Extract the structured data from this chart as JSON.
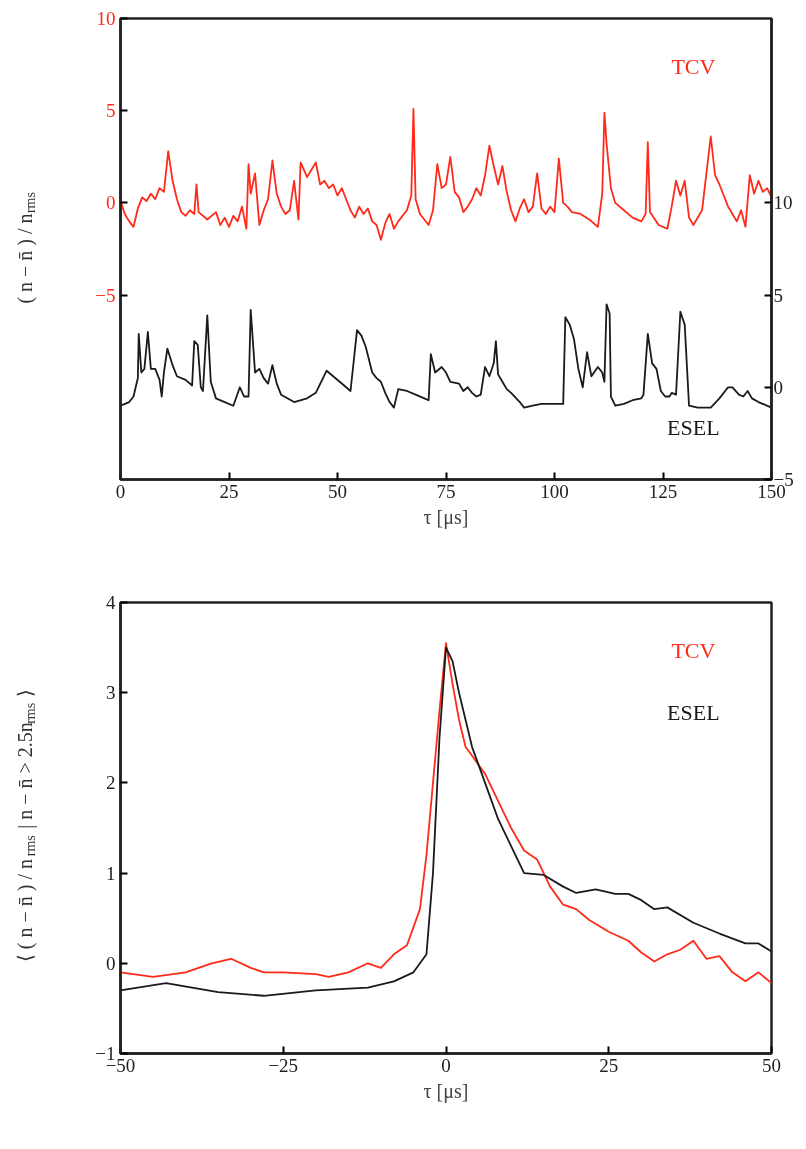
{
  "chart_data": [
    {
      "type": "line",
      "xlabel": "τ [μs]",
      "ylabel": "( n − n̄ ) / n$_{rms}$",
      "xlim": [
        0,
        150
      ],
      "xticks": [
        0,
        25,
        50,
        75,
        100,
        125,
        150
      ],
      "ylim": [
        -15,
        10
      ],
      "yticks": [
        -5,
        0,
        5,
        10
      ],
      "y2lim": [
        -5,
        20
      ],
      "y2ticks": [
        -5,
        0,
        5,
        10
      ],
      "grid": false,
      "series": [
        {
          "name": "TCV",
          "color": "#ff2a1a",
          "x": [
            0,
            1,
            2,
            3,
            4,
            5,
            6,
            7,
            8,
            9,
            10,
            11,
            12,
            13,
            14,
            15,
            16,
            17,
            17.5,
            18,
            20,
            22,
            23,
            24,
            25,
            26,
            27,
            28,
            29,
            29.5,
            30,
            31,
            32,
            33,
            34,
            35,
            36,
            37,
            38,
            39,
            40,
            41,
            41.5,
            43,
            44,
            45,
            46,
            47,
            48,
            49,
            50,
            51,
            52,
            53,
            54,
            55,
            56,
            57,
            58,
            59,
            60,
            61,
            62,
            63,
            64,
            66,
            67,
            67.5,
            68,
            69,
            70,
            71,
            72,
            73,
            74,
            75,
            76,
            77,
            78,
            79,
            80,
            81,
            82,
            83,
            84,
            85,
            86,
            87,
            88,
            89,
            90,
            91,
            92,
            93,
            94,
            95,
            96,
            97,
            98,
            99,
            100,
            101,
            102,
            103,
            104,
            106,
            108,
            110,
            111,
            111.5,
            112,
            113,
            114,
            116,
            118,
            120,
            121,
            121.5,
            122,
            124,
            126,
            127,
            128,
            129,
            130,
            131,
            132,
            134,
            136,
            137,
            138,
            139,
            140,
            141,
            142,
            143,
            144,
            145,
            146,
            147,
            148,
            149,
            150
          ],
          "values": [
            0.1,
            -0.6,
            -1.0,
            -1.3,
            -0.3,
            0.3,
            0.1,
            0.5,
            0.2,
            0.8,
            0.6,
            2.8,
            1.2,
            0.2,
            -0.5,
            -0.7,
            -0.4,
            -0.6,
            1.0,
            -0.5,
            -0.9,
            -0.5,
            -1.2,
            -0.8,
            -1.3,
            -0.7,
            -1.0,
            -0.2,
            -1.4,
            2.1,
            0.5,
            1.6,
            -1.2,
            -0.4,
            0.2,
            2.3,
            0.5,
            -0.2,
            -0.6,
            -0.4,
            1.2,
            -0.9,
            2.2,
            1.4,
            1.8,
            2.2,
            1.0,
            1.2,
            0.8,
            1.0,
            0.4,
            0.8,
            0.2,
            -0.4,
            -0.8,
            -0.2,
            -0.6,
            -0.3,
            -1.0,
            -1.2,
            -2.0,
            -1.1,
            -0.6,
            -1.4,
            -1.0,
            -0.4,
            0.4,
            5.1,
            0.2,
            -0.6,
            -0.9,
            -1.2,
            -0.4,
            2.1,
            0.8,
            1.0,
            2.5,
            0.6,
            0.3,
            -0.5,
            -0.2,
            0.2,
            0.8,
            0.4,
            1.5,
            3.1,
            2.0,
            1.0,
            2.0,
            0.6,
            -0.4,
            -1.0,
            -0.3,
            0.2,
            -0.5,
            -0.2,
            1.6,
            -0.3,
            -0.6,
            -0.2,
            -0.5,
            2.4,
            0.0,
            -0.2,
            -0.5,
            -0.6,
            -0.9,
            -1.3,
            0.5,
            4.9,
            3.2,
            0.8,
            0.0,
            -0.4,
            -0.8,
            -1.0,
            -0.6,
            3.3,
            -0.5,
            -1.2,
            -1.4,
            -0.2,
            1.2,
            0.4,
            1.2,
            -0.8,
            -1.2,
            -0.4,
            3.6,
            1.5,
            1.0,
            0.4,
            -0.2,
            -0.6,
            -1.0,
            -0.4,
            -1.3,
            1.5,
            0.5,
            1.2,
            0.6,
            0.8,
            0.3
          ]
        },
        {
          "name": "ESEL",
          "color": "#1a1a1a",
          "axis": "y2",
          "x": [
            0,
            1,
            2,
            3,
            4,
            4.2,
            4.8,
            5.5,
            6.3,
            7,
            8,
            9,
            9.5,
            10,
            10.8,
            12,
            13,
            15,
            16.5,
            17,
            17.8,
            18.5,
            19,
            20,
            20.8,
            22,
            24,
            26,
            27.5,
            28.5,
            29.5,
            30,
            31,
            32,
            33,
            34,
            35,
            36,
            37,
            40,
            43,
            45,
            47.5,
            49,
            52,
            53,
            54.5,
            55.5,
            56.5,
            58,
            59,
            60,
            61,
            62,
            63,
            64,
            66,
            68,
            70,
            71,
            71.5,
            72.5,
            74,
            75,
            76,
            78,
            79,
            80,
            81,
            82,
            83,
            84,
            85,
            86,
            86.5,
            87,
            88,
            89,
            90,
            92,
            93,
            95,
            97,
            100,
            102,
            102.5,
            103.5,
            104.5,
            105.5,
            106.5,
            107.5,
            108.5,
            110,
            111,
            111.5,
            112,
            112.7,
            113,
            114,
            116,
            118,
            120,
            120.5,
            121.5,
            122.5,
            123.5,
            124.5,
            125.5,
            126.5,
            127,
            128,
            129,
            130,
            131,
            133,
            136,
            138,
            140,
            141,
            142.5,
            143.5,
            144.5,
            145.5,
            147,
            150
          ],
          "values": [
            -1.0,
            -0.9,
            -0.8,
            -0.5,
            0.5,
            2.9,
            0.8,
            1.0,
            3.0,
            1.0,
            1.0,
            0.4,
            -0.5,
            0.8,
            2.1,
            1.2,
            0.6,
            0.4,
            0.1,
            2.5,
            2.3,
            0.0,
            -0.2,
            3.9,
            0.3,
            -0.6,
            -0.8,
            -1.0,
            0.0,
            -0.5,
            -0.5,
            4.2,
            0.8,
            1.0,
            0.5,
            0.2,
            1.2,
            0.2,
            -0.4,
            -0.8,
            -0.6,
            -0.3,
            0.9,
            0.6,
            0.0,
            -0.2,
            3.1,
            2.8,
            2.2,
            0.8,
            0.5,
            0.3,
            -0.3,
            -0.8,
            -1.1,
            -0.1,
            -0.2,
            -0.4,
            -0.6,
            -0.7,
            1.8,
            0.8,
            1.1,
            0.8,
            0.3,
            0.2,
            -0.2,
            0.0,
            -0.3,
            -0.5,
            -0.4,
            1.1,
            0.6,
            1.3,
            2.5,
            0.7,
            0.3,
            -0.1,
            -0.3,
            -0.8,
            -1.1,
            -1.0,
            -0.9,
            -0.9,
            -0.9,
            3.8,
            3.4,
            2.6,
            1.0,
            0.0,
            1.9,
            0.6,
            1.1,
            0.8,
            0.3,
            4.5,
            4.0,
            -0.5,
            -1.0,
            -0.9,
            -0.7,
            -0.6,
            -0.4,
            2.9,
            1.3,
            1.0,
            -0.2,
            -0.5,
            -0.5,
            -0.3,
            -0.4,
            4.1,
            3.4,
            -1.0,
            -1.1,
            -1.1,
            -0.6,
            0.0,
            0.0,
            -0.4,
            -0.5,
            -0.2,
            -0.6,
            -0.8,
            -1.1
          ]
        }
      ]
    },
    {
      "type": "line",
      "xlabel": "τ [μs]",
      "ylabel": "⟨ ( n − n̄ ) / n$_{rms}$ | n − n̄ > 2.5n$_{rms}$ ⟩",
      "xlim": [
        -50,
        50
      ],
      "xticks": [
        -50,
        -25,
        0,
        25,
        50
      ],
      "ylim": [
        -1,
        4
      ],
      "yticks": [
        -1,
        0,
        1,
        2,
        3,
        4
      ],
      "grid": false,
      "series": [
        {
          "name": "TCV",
          "color": "#ff2a1a",
          "x": [
            -50,
            -45,
            -40,
            -36,
            -33,
            -30,
            -28,
            -25,
            -20,
            -18,
            -15,
            -12,
            -10,
            -8,
            -6,
            -4,
            -3,
            -2,
            -1,
            0,
            1,
            2,
            3,
            4,
            6,
            8,
            10,
            12,
            14,
            16,
            18,
            20,
            22,
            25,
            28,
            30,
            32,
            34,
            36,
            38,
            40,
            42,
            44,
            46,
            48,
            50
          ],
          "values": [
            -0.1,
            -0.15,
            -0.1,
            0.0,
            0.05,
            -0.05,
            -0.1,
            -0.1,
            -0.12,
            -0.15,
            -0.1,
            0.0,
            -0.05,
            0.1,
            0.2,
            0.6,
            1.2,
            2.0,
            2.8,
            3.55,
            3.1,
            2.7,
            2.4,
            2.3,
            2.1,
            1.8,
            1.5,
            1.25,
            1.15,
            0.85,
            0.65,
            0.6,
            0.48,
            0.35,
            0.25,
            0.12,
            0.02,
            0.1,
            0.15,
            0.25,
            0.05,
            0.08,
            -0.1,
            -0.2,
            -0.1,
            -0.22
          ]
        },
        {
          "name": "ESEL",
          "color": "#1a1a1a",
          "x": [
            -50,
            -43,
            -35,
            -28,
            -20,
            -12,
            -8,
            -5,
            -3,
            -2,
            -1,
            0,
            1,
            2,
            4,
            6,
            8,
            10,
            12,
            15,
            18,
            20,
            23,
            26,
            28,
            30,
            32,
            34,
            38,
            42,
            46,
            48,
            50
          ],
          "values": [
            -0.3,
            -0.22,
            -0.32,
            -0.36,
            -0.3,
            -0.27,
            -0.2,
            -0.1,
            0.1,
            1.0,
            2.5,
            3.5,
            3.35,
            3.0,
            2.4,
            2.0,
            1.6,
            1.3,
            1.0,
            0.98,
            0.85,
            0.78,
            0.82,
            0.77,
            0.77,
            0.7,
            0.6,
            0.62,
            0.45,
            0.33,
            0.22,
            0.22,
            0.13
          ]
        }
      ]
    }
  ]
}
